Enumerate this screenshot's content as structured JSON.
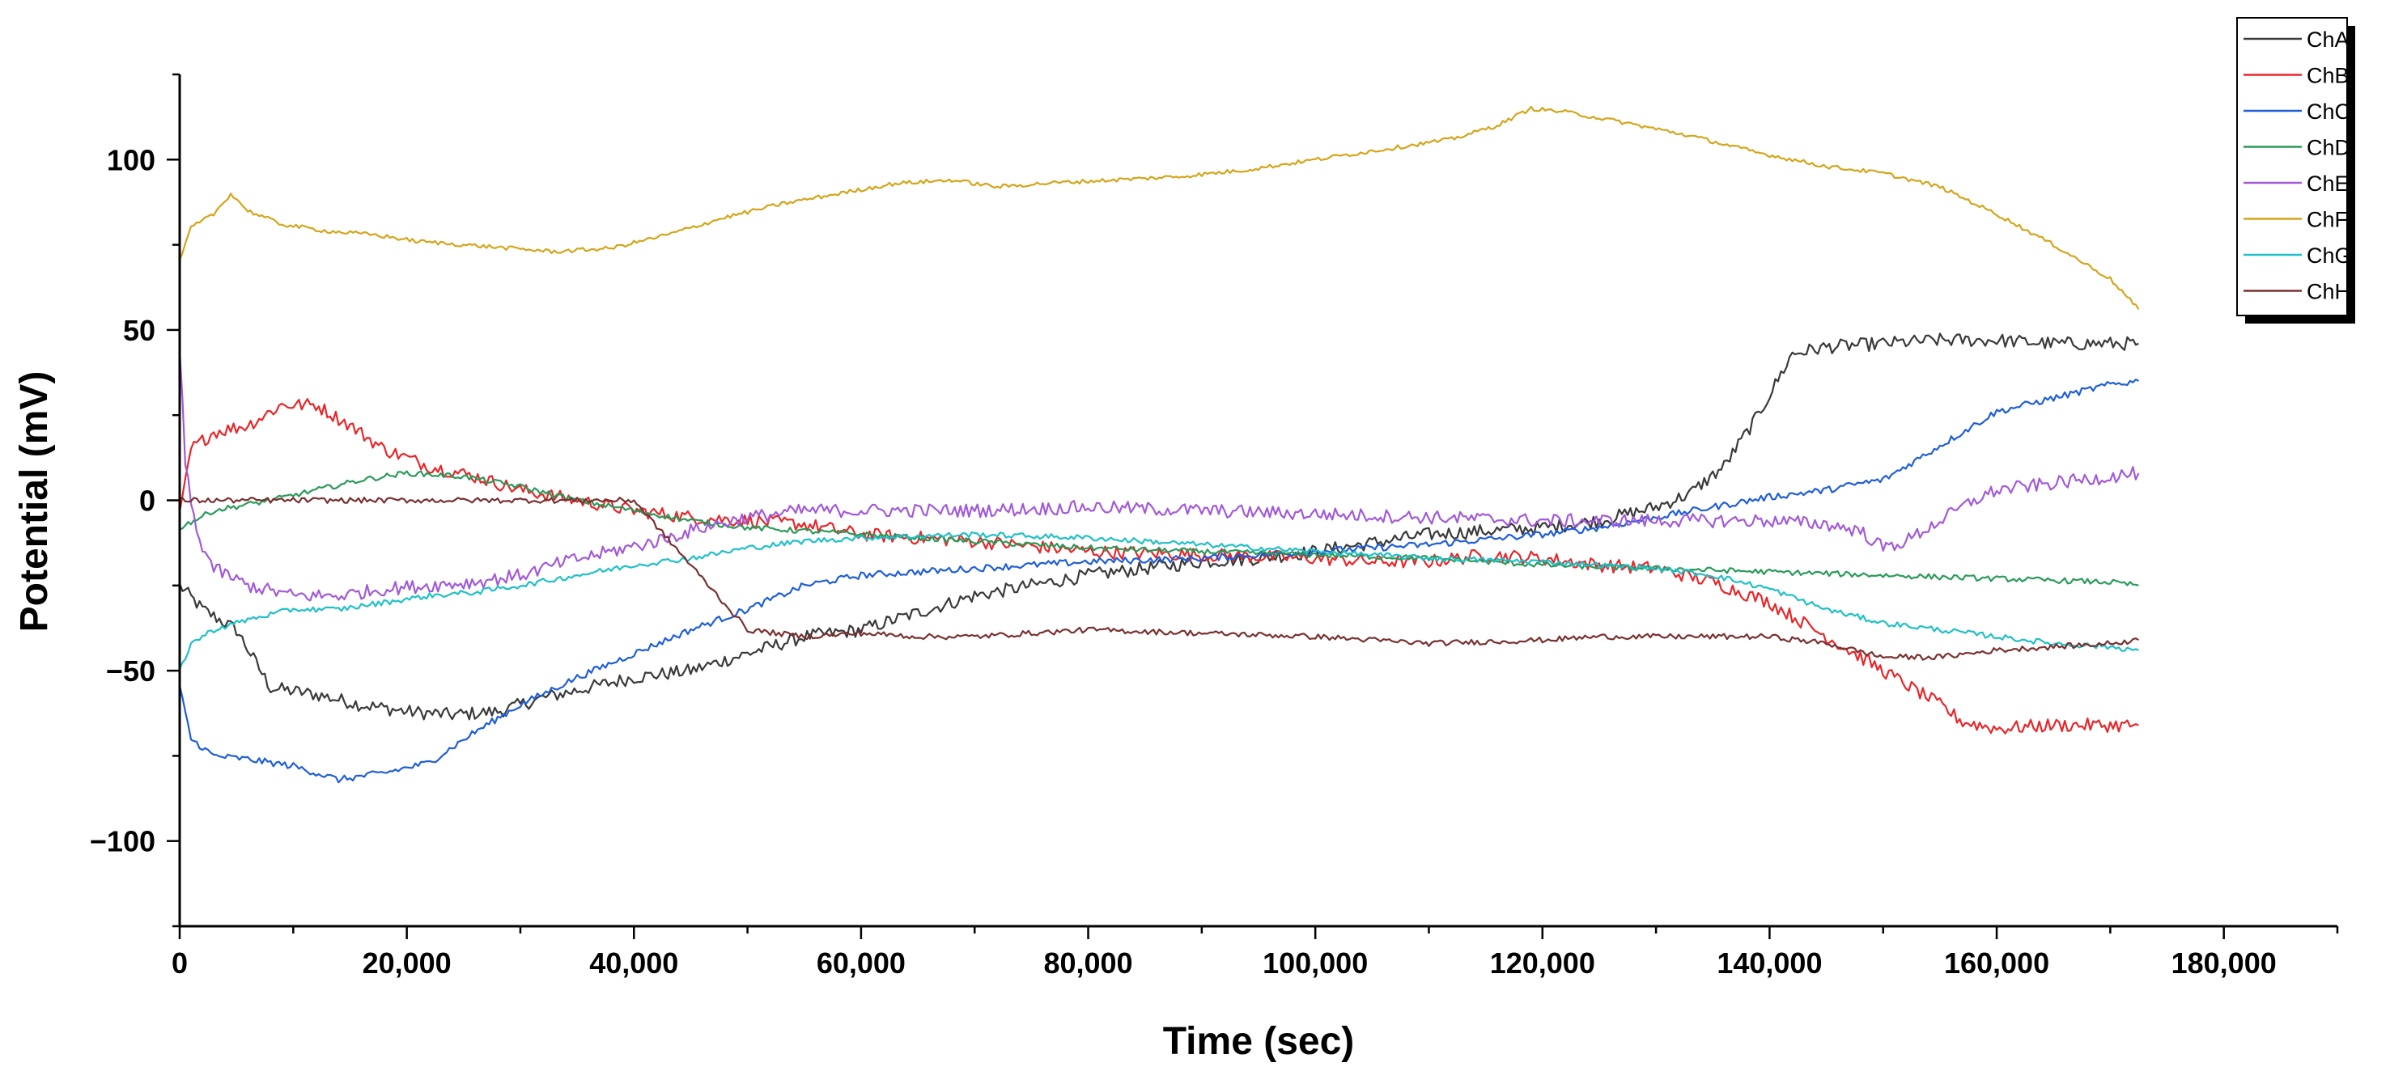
{
  "chart_data": {
    "type": "line",
    "title": "",
    "xlabel": "Time (sec)",
    "ylabel": "Potential (mV)",
    "xlim": [
      0,
      190000
    ],
    "ylim": [
      -125,
      125
    ],
    "xticks": [
      0,
      20000,
      40000,
      60000,
      80000,
      100000,
      120000,
      140000,
      160000,
      180000
    ],
    "xtick_labels": [
      "0",
      "20,000",
      "40,000",
      "60,000",
      "80,000",
      "100,000",
      "120,000",
      "140,000",
      "160,000",
      "180,000"
    ],
    "yticks": [
      -100,
      -50,
      0,
      50,
      100
    ],
    "ytick_labels": [
      "−100",
      "−50",
      "0",
      "50",
      "100"
    ],
    "grid": false,
    "legend_position": "top-right",
    "series": [
      {
        "name": "ChA",
        "color": "#3a3a3a",
        "noise": 2.0,
        "x": [
          0,
          2000,
          5000,
          8000,
          12000,
          16000,
          20000,
          24000,
          28000,
          32000,
          36000,
          40000,
          45000,
          50000,
          55000,
          60000,
          65000,
          70000,
          75000,
          80000,
          85000,
          90000,
          95000,
          100000,
          110000,
          120000,
          125000,
          130000,
          133000,
          136000,
          139000,
          142000,
          145000,
          150000,
          155000,
          160000,
          165000,
          170000,
          172500
        ],
        "y": [
          -25,
          -32,
          -38,
          -55,
          -57,
          -60,
          -62,
          -63,
          -62,
          -58,
          -55,
          -52,
          -50,
          -45,
          -40,
          -38,
          -33,
          -28,
          -25,
          -22,
          -20,
          -18,
          -17,
          -15,
          -10,
          -8,
          -6,
          -2,
          2,
          10,
          25,
          43,
          45,
          46,
          47,
          47,
          46,
          46,
          46
        ]
      },
      {
        "name": "ChB",
        "color": "#e8262a",
        "noise": 2.0,
        "x": [
          0,
          1000,
          3000,
          6000,
          9000,
          12000,
          15000,
          18000,
          22000,
          26000,
          30000,
          35000,
          40000,
          45000,
          50000,
          55000,
          60000,
          70000,
          80000,
          90000,
          100000,
          105000,
          110000,
          115000,
          120000,
          125000,
          130000,
          135000,
          140000,
          145000,
          150000,
          155000,
          157000,
          160000,
          165000,
          170000,
          172500
        ],
        "y": [
          -5,
          15,
          20,
          22,
          28,
          28,
          22,
          15,
          10,
          7,
          3,
          0,
          -3,
          -5,
          -6,
          -7,
          -10,
          -12,
          -15,
          -16,
          -17,
          -18,
          -18,
          -16,
          -17,
          -19,
          -20,
          -24,
          -30,
          -40,
          -50,
          -60,
          -65,
          -67,
          -66,
          -66,
          -66
        ]
      },
      {
        "name": "ChC",
        "color": "#1f5ed8",
        "noise": 1.0,
        "x": [
          0,
          1000,
          3000,
          6000,
          10000,
          14000,
          18000,
          22000,
          26000,
          30000,
          35000,
          40000,
          45000,
          50000,
          55000,
          60000,
          65000,
          70000,
          75000,
          80000,
          90000,
          100000,
          110000,
          120000,
          125000,
          130000,
          135000,
          140000,
          145000,
          148000,
          150000,
          152000,
          155000,
          158000,
          160000,
          165000,
          170000,
          172500
        ],
        "y": [
          -55,
          -70,
          -75,
          -76,
          -78,
          -82,
          -80,
          -77,
          -68,
          -60,
          -52,
          -45,
          -38,
          -32,
          -25,
          -22,
          -21,
          -20,
          -19,
          -18,
          -17,
          -15,
          -13,
          -10,
          -8,
          -5,
          -2,
          1,
          3,
          5,
          6,
          10,
          16,
          22,
          26,
          30,
          34,
          35
        ]
      },
      {
        "name": "ChD",
        "color": "#2a9a5a",
        "noise": 0.8,
        "x": [
          0,
          3000,
          8000,
          12000,
          16000,
          20000,
          25000,
          30000,
          35000,
          40000,
          45000,
          50000,
          55000,
          60000,
          70000,
          80000,
          90000,
          100000,
          110000,
          120000,
          130000,
          140000,
          150000,
          160000,
          170000,
          172500
        ],
        "y": [
          -8,
          -3,
          0,
          3,
          6,
          8,
          7,
          4,
          0,
          -3,
          -6,
          -8,
          -9,
          -10,
          -12,
          -14,
          -15,
          -16,
          -17,
          -19,
          -20,
          -21,
          -22,
          -23,
          -24,
          -25
        ]
      },
      {
        "name": "ChE",
        "color": "#a25ad8",
        "noise": 2.0,
        "x": [
          0,
          500,
          1500,
          3000,
          6000,
          10000,
          14000,
          18000,
          22000,
          26000,
          30000,
          34000,
          38000,
          42000,
          46000,
          50000,
          55000,
          60000,
          70000,
          80000,
          90000,
          100000,
          110000,
          120000,
          130000,
          140000,
          145000,
          148000,
          150000,
          152000,
          155000,
          158000,
          160000,
          165000,
          170000,
          172500
        ],
        "y": [
          45,
          10,
          -10,
          -20,
          -25,
          -28,
          -28,
          -26,
          -25,
          -24,
          -22,
          -18,
          -15,
          -12,
          -8,
          -5,
          -3,
          -3,
          -3,
          -2,
          -3,
          -4,
          -5,
          -6,
          -6,
          -6,
          -7,
          -9,
          -14,
          -12,
          -6,
          0,
          3,
          5,
          7,
          8
        ]
      },
      {
        "name": "ChF",
        "color": "#d4a51a",
        "noise": 0.6,
        "x": [
          0,
          1000,
          3000,
          4500,
          6000,
          9000,
          13000,
          17000,
          21000,
          25000,
          29000,
          33000,
          38000,
          43000,
          48000,
          53000,
          58000,
          63000,
          68000,
          70000,
          72000,
          76000,
          82000,
          88000,
          94000,
          100000,
          106000,
          112000,
          116000,
          119000,
          122000,
          127000,
          133000,
          139000,
          145000,
          150000,
          155000,
          160000,
          165000,
          170000,
          172500
        ],
        "y": [
          70,
          80,
          84,
          90,
          85,
          81,
          79,
          78,
          76,
          75,
          74,
          73,
          74,
          78,
          83,
          87,
          90,
          93,
          94,
          93,
          92,
          93,
          94,
          95,
          97,
          100,
          103,
          106,
          110,
          115,
          114,
          111,
          107,
          102,
          98,
          96,
          92,
          84,
          75,
          65,
          56
        ]
      },
      {
        "name": "ChG",
        "color": "#1fc0c8",
        "noise": 0.8,
        "x": [
          0,
          1000,
          3000,
          6000,
          10000,
          14000,
          18000,
          22000,
          26000,
          30000,
          35000,
          40000,
          45000,
          50000,
          55000,
          60000,
          70000,
          80000,
          90000,
          100000,
          110000,
          120000,
          130000,
          135000,
          140000,
          145000,
          150000,
          155000,
          160000,
          165000,
          170000,
          172500
        ],
        "y": [
          -50,
          -42,
          -38,
          -35,
          -32,
          -32,
          -30,
          -28,
          -27,
          -25,
          -22,
          -19,
          -17,
          -14,
          -12,
          -11,
          -10,
          -11,
          -13,
          -15,
          -17,
          -18,
          -20,
          -22,
          -26,
          -32,
          -36,
          -38,
          -40,
          -42,
          -43,
          -44
        ]
      },
      {
        "name": "ChH",
        "color": "#7a3030",
        "noise": 0.8,
        "x": [
          0,
          10000,
          20000,
          30000,
          40000,
          50000,
          55000,
          60000,
          65000,
          70000,
          75000,
          80000,
          90000,
          100000,
          110000,
          120000,
          125000,
          130000,
          140000,
          145000,
          150000,
          155000,
          160000,
          165000,
          170000,
          172500
        ],
        "y": [
          0,
          0,
          0,
          0,
          0,
          -38,
          -40,
          -39,
          -40,
          -40,
          -39,
          -38,
          -39,
          -40,
          -42,
          -41,
          -40,
          -40,
          -40,
          -42,
          -46,
          -46,
          -44,
          -43,
          -42,
          -41
        ]
      }
    ]
  }
}
